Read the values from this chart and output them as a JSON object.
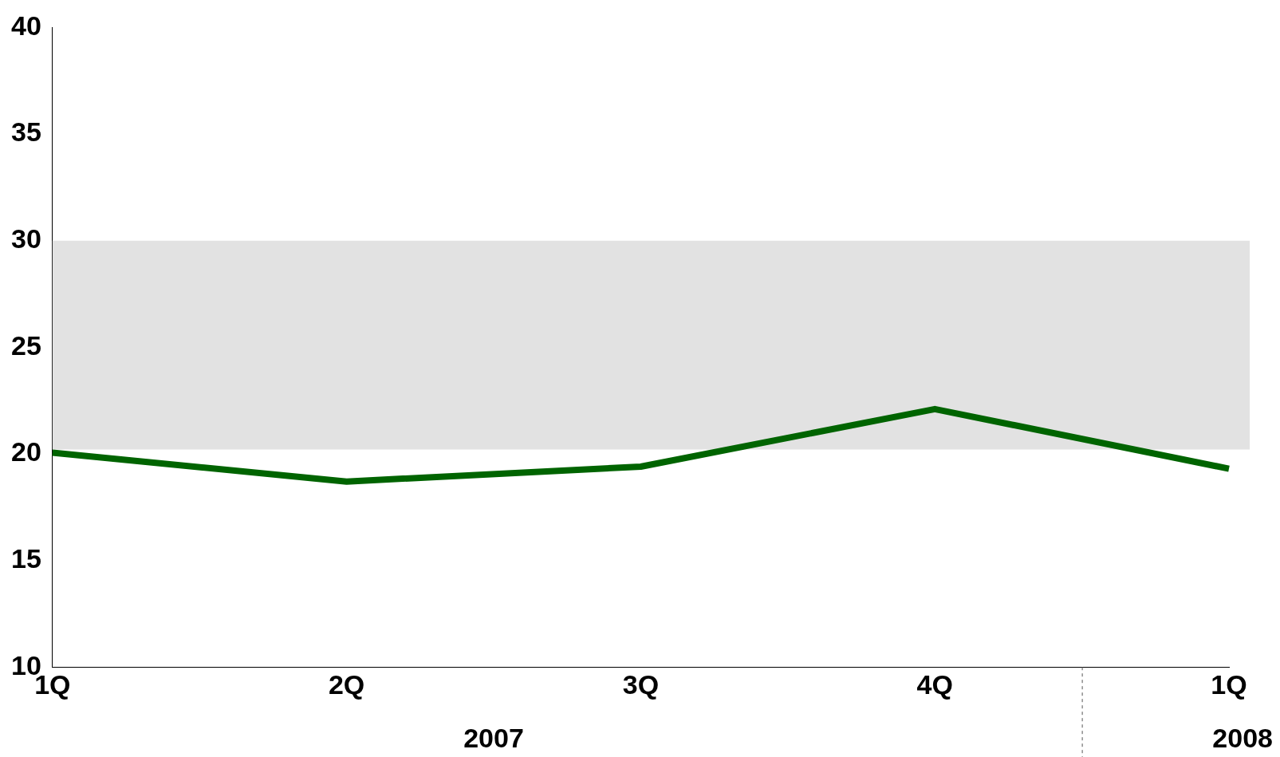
{
  "chart_data": {
    "type": "line",
    "categories": [
      "1Q",
      "2Q",
      "3Q",
      "4Q",
      "1Q"
    ],
    "series": [
      {
        "color": "#006400",
        "values": [
          20.05,
          18.7,
          19.4,
          22.1,
          19.3
        ]
      }
    ],
    "ylim": [
      10,
      40
    ],
    "yticks": [
      10,
      15,
      20,
      25,
      30,
      35,
      40
    ],
    "grid": false,
    "legend": false,
    "marker": "none",
    "line_style": "solid",
    "bands": [
      {
        "axis": "y",
        "from": 20.2,
        "to": 30,
        "color": "#e2e2e2"
      }
    ],
    "annotations": [
      "2007",
      "2008"
    ]
  }
}
